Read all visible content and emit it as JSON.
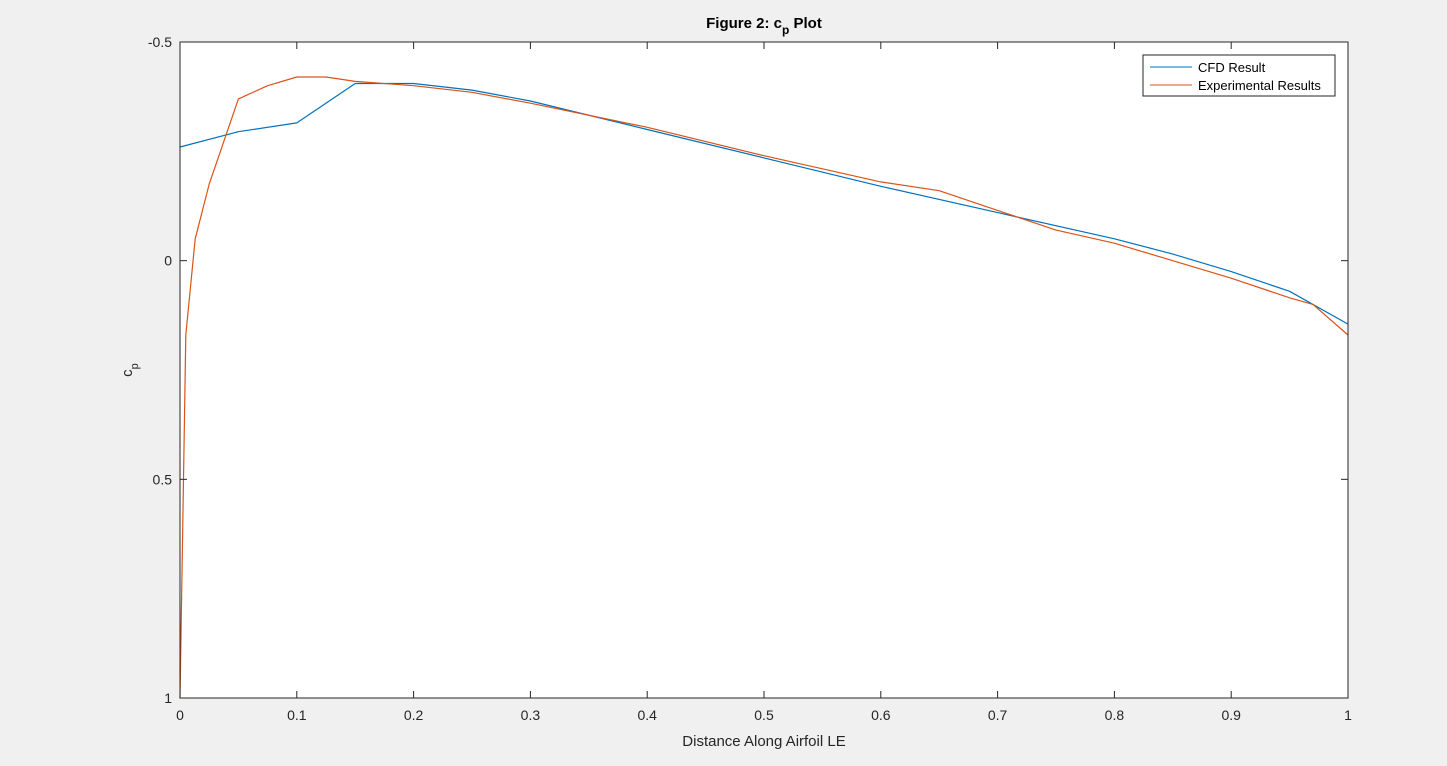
{
  "chart_data": {
    "type": "line",
    "title": "Figure 2: c",
    "title_subscript": "p",
    "title_suffix": " Plot",
    "xlabel": "Distance Along Airfoil LE",
    "ylabel": "c",
    "ylabel_subscript": "p",
    "xlim": [
      0,
      1
    ],
    "ylim": [
      -0.5,
      1
    ],
    "y_reversed": true,
    "x_ticks": [
      "0",
      "0.1",
      "0.2",
      "0.3",
      "0.4",
      "0.5",
      "0.6",
      "0.7",
      "0.8",
      "0.9",
      "1"
    ],
    "x_tick_values": [
      0,
      0.1,
      0.2,
      0.3,
      0.4,
      0.5,
      0.6,
      0.7,
      0.8,
      0.9,
      1
    ],
    "y_ticks": [
      "-0.5",
      "0",
      "0.5",
      "1"
    ],
    "y_tick_values": [
      -0.5,
      0,
      0.5,
      1
    ],
    "grid": false,
    "legend_position": "top-right",
    "series": [
      {
        "name": "CFD Result",
        "color": "#0072bd",
        "x": [
          0,
          0.05,
          0.1,
          0.15,
          0.2,
          0.25,
          0.3,
          0.4,
          0.5,
          0.6,
          0.7,
          0.8,
          0.85,
          0.9,
          0.95,
          1
        ],
        "y": [
          -0.26,
          -0.295,
          -0.315,
          -0.405,
          -0.405,
          -0.39,
          -0.365,
          -0.3,
          -0.235,
          -0.17,
          -0.11,
          -0.05,
          -0.015,
          0.025,
          0.07,
          0.145
        ]
      },
      {
        "name": "Experimental Results",
        "color": "#d95319",
        "x": [
          0,
          0.005,
          0.013,
          0.025,
          0.05,
          0.075,
          0.1,
          0.125,
          0.15,
          0.2,
          0.25,
          0.3,
          0.4,
          0.5,
          0.6,
          0.65,
          0.7,
          0.75,
          0.8,
          0.85,
          0.9,
          0.95,
          0.97,
          1
        ],
        "y": [
          1.0,
          0.17,
          -0.05,
          -0.175,
          -0.37,
          -0.4,
          -0.42,
          -0.42,
          -0.41,
          -0.4,
          -0.385,
          -0.36,
          -0.305,
          -0.24,
          -0.18,
          -0.16,
          -0.115,
          -0.07,
          -0.04,
          0.0,
          0.04,
          0.085,
          0.1,
          0.17
        ]
      }
    ]
  }
}
